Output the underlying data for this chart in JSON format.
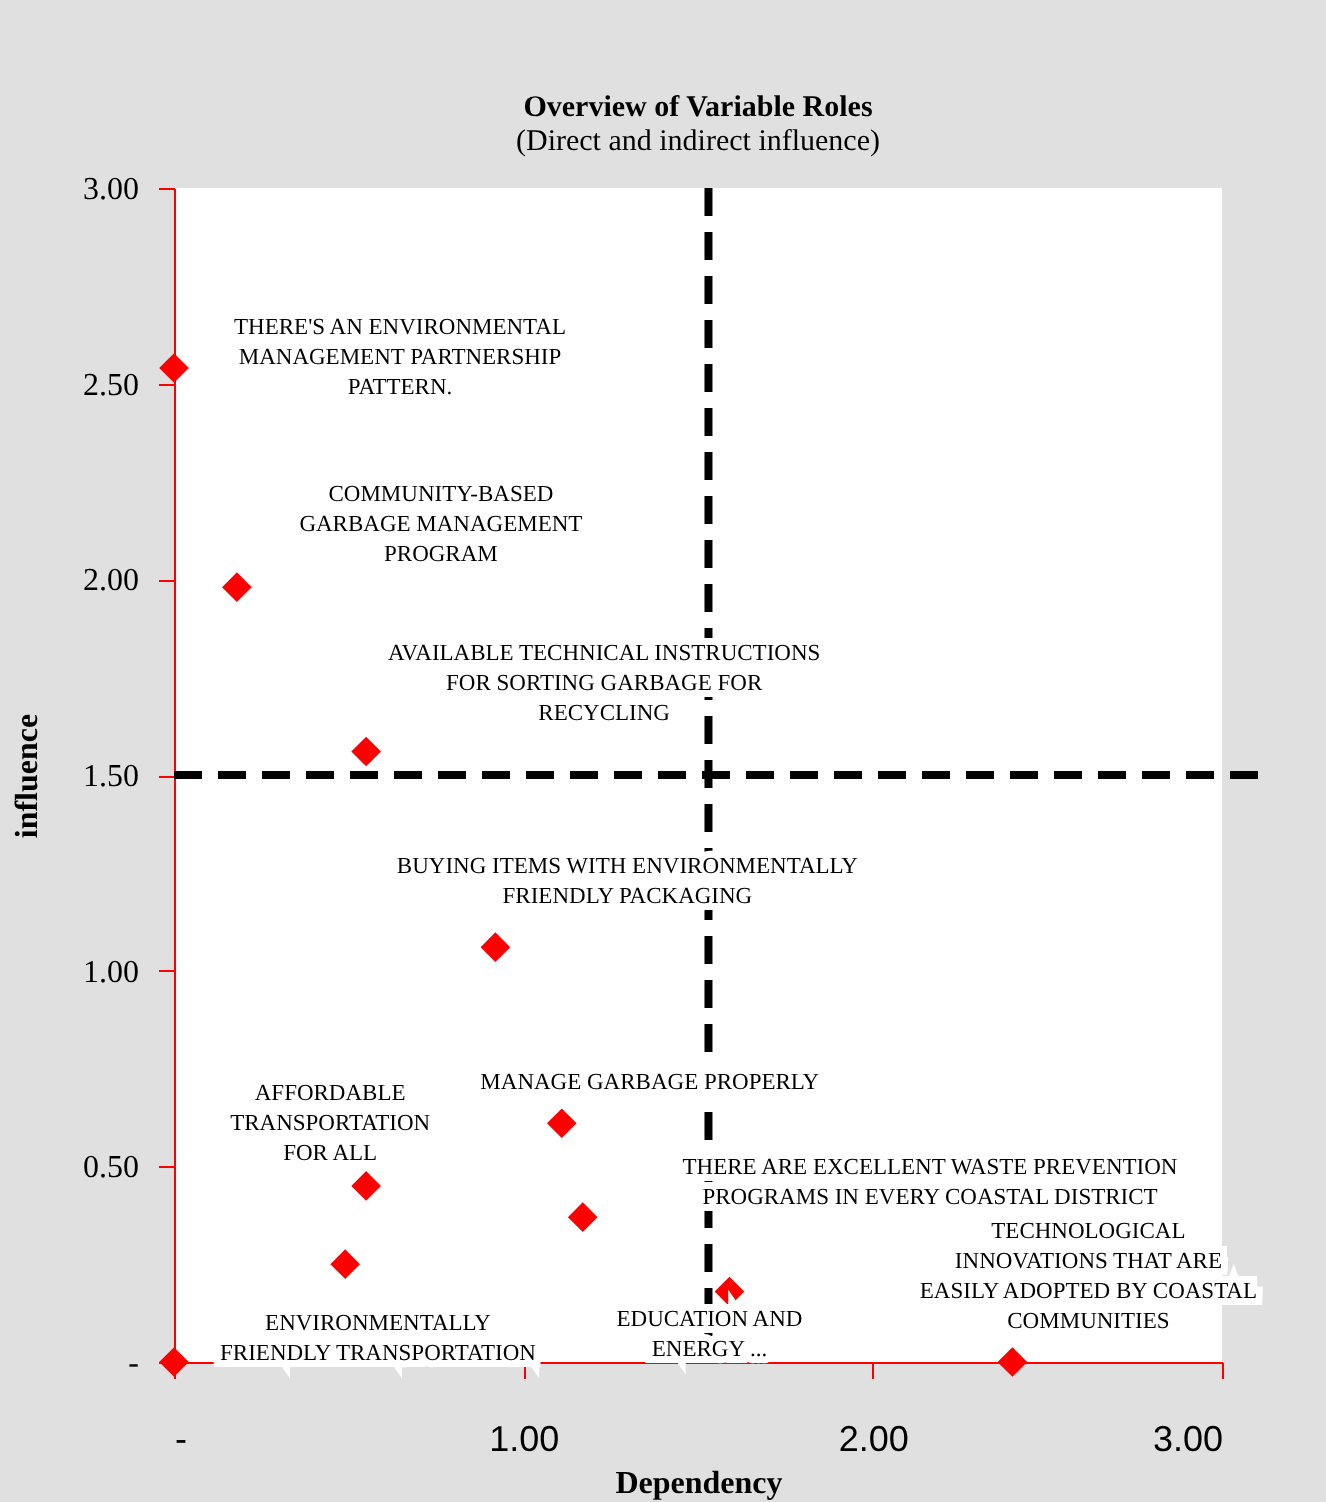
{
  "chart_data": {
    "type": "scatter",
    "title": "Overview of Variable Roles",
    "subtitle": "(Direct and indirect influence)",
    "xlabel": "Dependency",
    "ylabel": "influence",
    "x": [
      0,
      0.18,
      0.55,
      0.92,
      1.11,
      0.55,
      1.17,
      0.49,
      1.59,
      0,
      2.4
    ],
    "series": [
      {
        "color": "#ff0000",
        "values": [
          2.54,
          1.98,
          1.56,
          1.06,
          0.61,
          0.45,
          0.37,
          0.25,
          0.18,
          0,
          0
        ]
      }
    ],
    "xlim": [
      0,
      3
    ],
    "ylim": [
      0,
      3
    ],
    "xticks": [
      {
        "value": 0,
        "label": "-"
      },
      {
        "value": 1,
        "label": "1.00"
      },
      {
        "value": 2,
        "label": "2.00"
      },
      {
        "value": 3,
        "label": "3.00"
      }
    ],
    "yticks": [
      {
        "value": 0,
        "label": "-"
      },
      {
        "value": 0.5,
        "label": "0.50"
      },
      {
        "value": 1,
        "label": "1.00"
      },
      {
        "value": 1.5,
        "label": "1.50"
      },
      {
        "value": 2,
        "label": "2.00"
      },
      {
        "value": 2.5,
        "label": "2.50"
      },
      {
        "value": 3,
        "label": "3.00"
      }
    ],
    "ref_lines": [
      {
        "axis": "x",
        "value": 1.53,
        "color": "#000000",
        "line_style": "dashed"
      },
      {
        "axis": "y",
        "value": 1.5,
        "color": "#000000",
        "line_style": "dashed"
      }
    ],
    "annotations": [
      {
        "text": "THERE'S AN ENVIRONMENTAL\nMANAGEMENT PARTNERSHIP\nPATTERN.",
        "x": 0,
        "y": 2.54
      },
      {
        "text": "COMMUNITY-BASED\nGARBAGE MANAGEMENT\nPROGRAM",
        "x": 0.18,
        "y": 1.98
      },
      {
        "text": "AVAILABLE TECHNICAL INSTRUCTIONS\nFOR SORTING GARBAGE FOR\nRECYCLING",
        "x": 0.55,
        "y": 1.56
      },
      {
        "text": "BUYING ITEMS WITH ENVIRONMENTALLY\nFRIENDLY PACKAGING",
        "x": 0.92,
        "y": 1.06
      },
      {
        "text": "MANAGE GARBAGE PROPERLY",
        "x": 1.11,
        "y": 0.61
      },
      {
        "text": "AFFORDABLE\nTRANSPORTATION\nFOR ALL",
        "x": 0.55,
        "y": 0.45
      },
      "THERE ARE EXCELLENT WASTE PREVENTION\nPROGRAMS IN EVERY COASTAL DISTRICT",
      {
        "text": "EDUCATION AND\nENERGY ...",
        "x": 1.59,
        "y": 0.18
      },
      {
        "text": "ENVIRONMENTALLY\nFRIENDLY TRANSPORTATION",
        "x": 0,
        "y": 0
      },
      {
        "text": "TECHNOLOGICAL\nINNOVATIONS THAT ARE\nEASILY ADOPTED BY COASTAL\nCOMMUNITIES",
        "x": 2.4,
        "y": 0
      }
    ],
    "grid": false,
    "marker": "diamond"
  }
}
